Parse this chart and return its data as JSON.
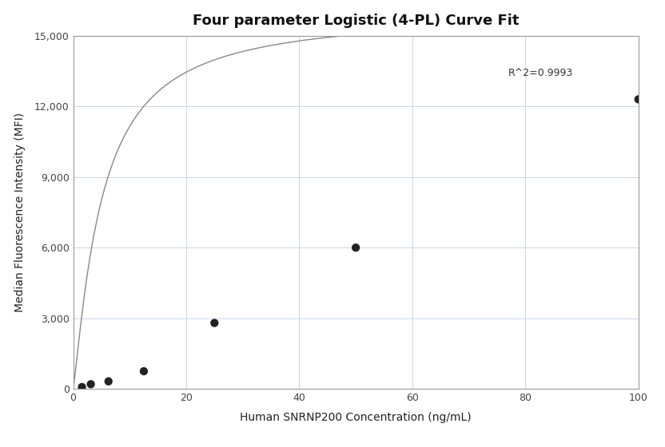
{
  "title": "Four parameter Logistic (4-PL) Curve Fit",
  "xlabel": "Human SNRNP200 Concentration (ng/mL)",
  "ylabel": "Median Fluorescence Intensity (MFI)",
  "scatter_x": [
    1.5625,
    3.125,
    6.25,
    12.5,
    25,
    50,
    100
  ],
  "scatter_y": [
    80,
    200,
    320,
    750,
    2800,
    6000,
    12300
  ],
  "xlim": [
    0,
    100
  ],
  "ylim": [
    0,
    15000
  ],
  "xticks": [
    0,
    20,
    40,
    60,
    80,
    100
  ],
  "yticks": [
    0,
    3000,
    6000,
    9000,
    12000,
    15000
  ],
  "r_squared": "R^2=0.9993",
  "r2_x": 77,
  "r2_y": 13200,
  "curve_color": "#888888",
  "scatter_color": "#222222",
  "grid_color": "#c8d8e8",
  "bg_color": "#ffffff",
  "title_fontsize": 13,
  "label_fontsize": 10,
  "tick_fontsize": 9,
  "annotation_fontsize": 9,
  "scatter_size": 55,
  "line_width": 1.0
}
